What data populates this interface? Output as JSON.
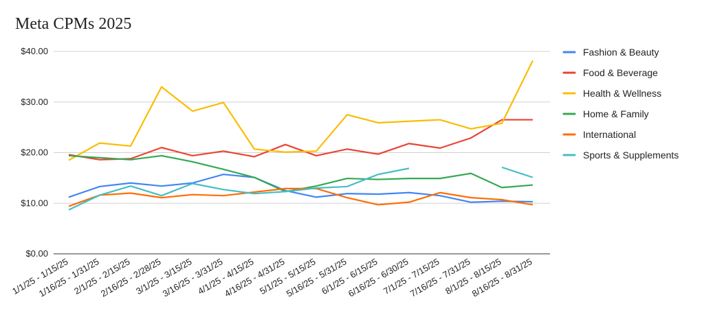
{
  "chart_data": {
    "type": "line",
    "title": "Meta CPMs 2025",
    "xlabel": "",
    "ylabel": "",
    "ylim": [
      0,
      40
    ],
    "y_ticks": [
      "$0.00",
      "$10.00",
      "$20.00",
      "$30.00",
      "$40.00"
    ],
    "y_tick_values": [
      0,
      10,
      20,
      30,
      40
    ],
    "grid": true,
    "legend_position": "right",
    "categories": [
      "1/1/25 - 1/15/25",
      "1/16/25 - 1/31/25",
      "2/1/25 - 2/15/25",
      "2/16/25 - 2/28/25",
      "3/1/25 - 3/15/25",
      "3/16/25 - 3/31/25",
      "4/1/25 - 4/15/25",
      "4/16/25 - 4/31/25",
      "5/1/25 - 5/15/25",
      "5/16/25 - 5/31/25",
      "6/1/25 - 6/15/25",
      "6/16/25 - 6/30/25",
      "7/1/25 - 7/15/25",
      "7/16/25 - 7/31/25",
      "8/1/25 - 8/15/25",
      "8/16/25 - 8/31/25"
    ],
    "series": [
      {
        "name": "Fashion & Beauty",
        "color": "#4285F4",
        "values": [
          11.2,
          13.3,
          14.0,
          13.4,
          14.0,
          15.7,
          15.1,
          12.5,
          11.2,
          11.9,
          11.8,
          12.1,
          11.5,
          10.2,
          10.4,
          10.3
        ]
      },
      {
        "name": "Food & Beverage",
        "color": "#EA4335",
        "values": [
          19.6,
          18.6,
          18.8,
          21.0,
          19.4,
          20.3,
          19.2,
          21.6,
          19.4,
          20.7,
          19.7,
          21.8,
          20.9,
          22.9,
          26.5,
          26.5
        ]
      },
      {
        "name": "Health & Wellness",
        "color": "#FBBC04",
        "values": [
          18.5,
          21.9,
          21.3,
          33.0,
          28.2,
          29.9,
          20.7,
          20.1,
          20.3,
          27.5,
          25.9,
          26.2,
          26.5,
          24.7,
          25.8,
          38.2
        ]
      },
      {
        "name": "Home & Family",
        "color": "#34A853",
        "values": [
          19.4,
          19.0,
          18.6,
          19.4,
          18.2,
          16.7,
          15.1,
          12.3,
          13.4,
          14.9,
          14.7,
          14.9,
          14.9,
          15.9,
          13.1,
          13.6
        ]
      },
      {
        "name": "International",
        "color": "#FF6D01",
        "values": [
          9.4,
          11.6,
          12.0,
          11.1,
          11.7,
          11.5,
          12.2,
          12.9,
          12.9,
          11.1,
          9.7,
          10.2,
          12.1,
          11.1,
          10.7,
          9.7
        ]
      },
      {
        "name": "Sports & Supplements",
        "color": "#46BDC6",
        "values": [
          8.7,
          11.6,
          13.4,
          11.5,
          13.9,
          12.7,
          11.9,
          12.3,
          13.0,
          13.3,
          15.7,
          16.9,
          null,
          null,
          17.1,
          15.1
        ]
      }
    ]
  }
}
